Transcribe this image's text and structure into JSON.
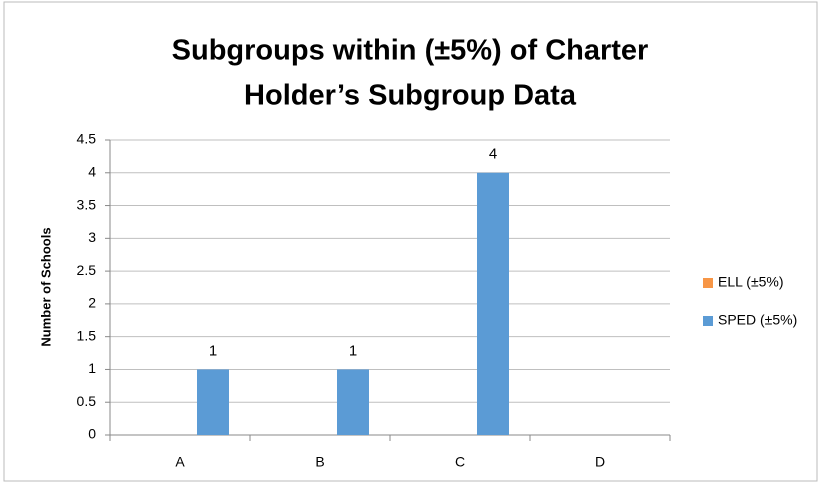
{
  "chart_data": {
    "type": "bar",
    "title": [
      "Subgroups within (±5%) of Charter",
      "Holder’s Subgroup Data"
    ],
    "y_label": "Number of Schools",
    "categories": [
      "A",
      "B",
      "C",
      "D"
    ],
    "series": [
      {
        "name": "ELL (±5%)",
        "color": "#f79646",
        "values": [
          null,
          null,
          null,
          null
        ]
      },
      {
        "name": "SPED (±5%)",
        "color": "#5b9bd5",
        "values": [
          1,
          1,
          4,
          null
        ]
      }
    ],
    "ylim": [
      0,
      4.5
    ],
    "yticks": [
      0,
      0.5,
      1,
      1.5,
      2,
      2.5,
      3,
      3.5,
      4,
      4.5
    ],
    "grid": true,
    "legend": "right"
  }
}
